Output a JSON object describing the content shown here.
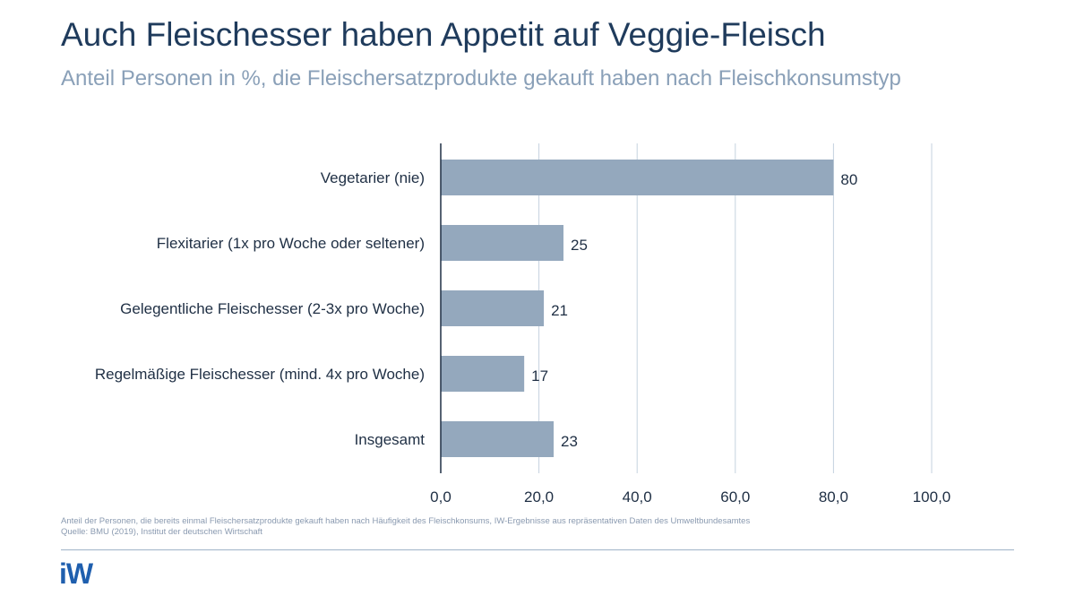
{
  "header": {
    "title": "Auch Fleischesser haben Appetit auf Veggie-Fleisch",
    "subtitle": "Anteil Personen in %, die Fleischersatzprodukte gekauft haben nach Fleischkonsumstyp"
  },
  "chart_data": {
    "type": "bar",
    "orientation": "horizontal",
    "categories": [
      "Vegetarier (nie)",
      "Flexitarier (1x pro Woche oder seltener)",
      "Gelegentliche Fleischesser (2-3x pro Woche)",
      "Regelmäßige Fleischesser (mind. 4x pro Woche)",
      "Insgesamt"
    ],
    "values": [
      80,
      25,
      21,
      17,
      23
    ],
    "value_labels": [
      "80",
      "25",
      "21",
      "17",
      "23"
    ],
    "xlim": [
      0,
      100
    ],
    "xticks": [
      0,
      20,
      40,
      60,
      80,
      100
    ],
    "xtick_labels": [
      "0,0",
      "20,0",
      "40,0",
      "60,0",
      "80,0",
      "100,0"
    ],
    "grid": true,
    "bar_color": "#94a8bd"
  },
  "footer": {
    "note": "Anteil der Personen, die bereits einmal Fleischersatzprodukte gekauft haben nach Häufigkeit des Fleischkonsums, IW-Ergebnisse aus repräsentativen Daten des Umweltbundesamtes",
    "source": "Quelle: BMU (2019), Institut der deutschen Wirtschaft",
    "logo_text": "iW",
    "brand_color": "#1f5fae"
  }
}
